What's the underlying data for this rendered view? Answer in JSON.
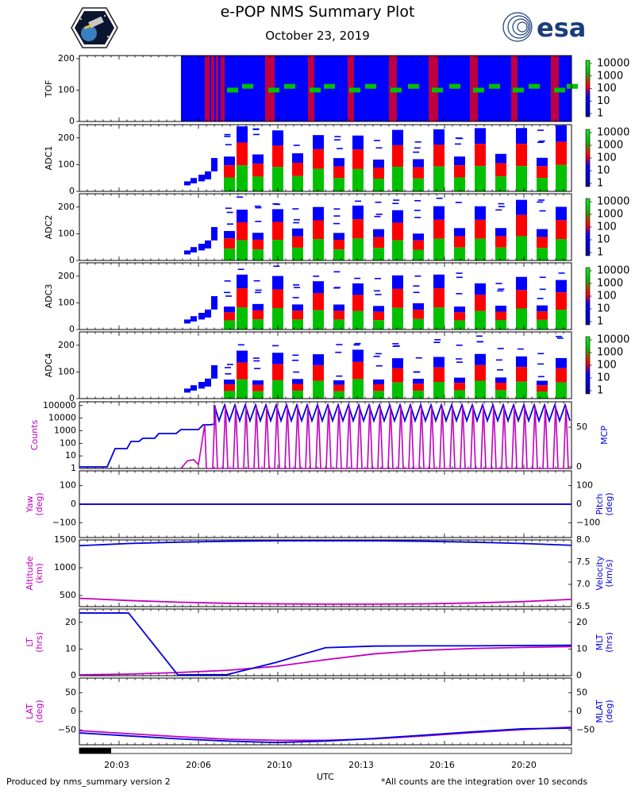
{
  "header": {
    "title": "e-POP NMS Summary Plot",
    "date": "October 23, 2019",
    "esa_text": "esa",
    "logos": [
      "epop-mission-patch",
      "esa-logo"
    ]
  },
  "footer": {
    "left": "Produced by nms_summary version 2",
    "right": "*All counts are the integration over 10 seconds",
    "xlabel": "UTC"
  },
  "colors": {
    "magenta": "#c000c0",
    "blue": "#0000e0",
    "spectrogram_low": "#0000ff",
    "spectrogram_mid": "#ff0000",
    "spectrogram_high": "#00c000"
  },
  "chart_data": {
    "type": "multi-panel time series",
    "x_ticks": [
      "20:03",
      "20:06",
      "20:10",
      "20:13",
      "20:16",
      "20:20"
    ],
    "colorbar_ticks": [
      "10000",
      "1000",
      "100",
      "10",
      "1"
    ],
    "spectrogram_panels": [
      {
        "name": "TOF",
        "ylabel": "TOF",
        "yticks": [
          "200",
          "100",
          "0"
        ],
        "ylim": [
          0,
          210
        ]
      },
      {
        "name": "ADC1",
        "ylabel": "ADC1",
        "yticks": [
          "200",
          "100",
          "0"
        ],
        "ylim": [
          0,
          250
        ]
      },
      {
        "name": "ADC2",
        "ylabel": "ADC2",
        "yticks": [
          "200",
          "100",
          "0"
        ],
        "ylim": [
          0,
          250
        ]
      },
      {
        "name": "ADC3",
        "ylabel": "ADC3",
        "yticks": [
          "200",
          "100",
          "0"
        ],
        "ylim": [
          0,
          250
        ]
      },
      {
        "name": "ADC4",
        "ylabel": "ADC4",
        "yticks": [
          "200",
          "100",
          "0"
        ],
        "ylim": [
          0,
          250
        ]
      }
    ],
    "line_panels": [
      {
        "name": "counts-mcp",
        "ylabel_left": "Counts",
        "ylabel_right": "MCP",
        "yticks_left": [
          "100000",
          "10000",
          "1000",
          "100",
          "10",
          "1"
        ],
        "yticks_right": [
          "50",
          "0"
        ]
      },
      {
        "name": "yaw-pitch",
        "ylabel_left": "Yaw\n(deg)",
        "ylabel_right": "Pitch\n(deg)",
        "yticks_left": [
          "100",
          "0",
          "−100"
        ],
        "yticks_right": [
          "100",
          "0",
          "−100"
        ],
        "ylim": [
          -180,
          180
        ],
        "yaw": [
          0,
          0,
          0,
          0,
          0,
          0,
          0,
          0,
          0,
          0,
          0
        ],
        "pitch": [
          0,
          0,
          0,
          0,
          0,
          0,
          0,
          0,
          0,
          0,
          0
        ]
      },
      {
        "name": "altitude-velocity",
        "ylabel_left": "Altitude\n(km)",
        "ylabel_right": "Velocity\n(km/s)",
        "yticks_left": [
          "1500",
          "1000",
          "500"
        ],
        "yticks_right": [
          "8.0",
          "7.5",
          "7.0",
          "6.5"
        ],
        "altitude": [
          450,
          410,
          380,
          360,
          350,
          345,
          345,
          350,
          365,
          390,
          430
        ],
        "velocity": [
          7.87,
          7.92,
          7.95,
          7.97,
          7.98,
          7.98,
          7.98,
          7.97,
          7.95,
          7.92,
          7.88
        ]
      },
      {
        "name": "lt-mlt",
        "ylabel_left": "LT\n(hrs)",
        "ylabel_right": "MLT\n(hrs)",
        "yticks_left": [
          "20",
          "10",
          "0"
        ],
        "yticks_right": [
          "20",
          "10",
          "0"
        ],
        "ylim": [
          0,
          25
        ],
        "lt": [
          0.3,
          0.6,
          1.2,
          2.0,
          3.5,
          6.0,
          8.2,
          9.5,
          10.2,
          10.6,
          10.9
        ],
        "mlt": [
          23.5,
          23.5,
          0.3,
          0.4,
          5.0,
          10.5,
          11.1,
          11.2,
          11.2,
          11.3,
          11.4
        ]
      },
      {
        "name": "lat-mlat",
        "ylabel_left": "LAT\n(deg)",
        "ylabel_right": "MLAT\n(deg)",
        "yticks_left": [
          "50",
          "0",
          "−50"
        ],
        "yticks_right": [
          "50",
          "0",
          "−50"
        ],
        "ylim": [
          -90,
          90
        ],
        "lat": [
          -52,
          -60,
          -68,
          -75,
          -78,
          -78,
          -74,
          -66,
          -57,
          -49,
          -42
        ],
        "mlat": [
          -58,
          -66,
          -74,
          -80,
          -84,
          -80,
          -73,
          -64,
          -55,
          -47,
          -45
        ]
      }
    ]
  }
}
